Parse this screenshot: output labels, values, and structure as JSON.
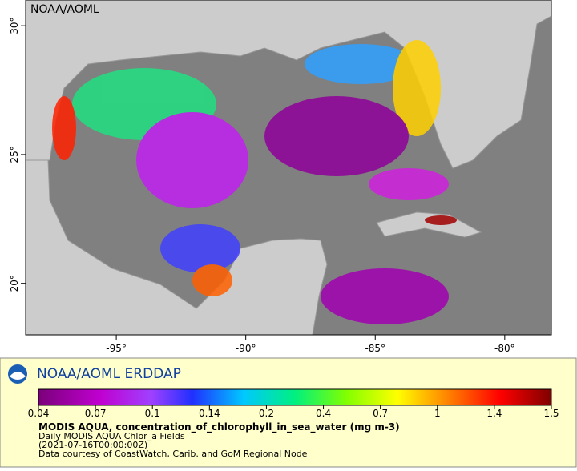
{
  "map": {
    "corner_label": "NOAA/AOML",
    "xlim": [
      -98.5,
      -78.2
    ],
    "ylim": [
      18,
      31
    ],
    "xticks": [
      {
        "value": -95,
        "label": "-95°"
      },
      {
        "value": -90,
        "label": "-90°"
      },
      {
        "value": -85,
        "label": "-85°"
      },
      {
        "value": -80,
        "label": "-80°"
      }
    ],
    "yticks": [
      {
        "value": 30,
        "label": "30°"
      },
      {
        "value": 25,
        "label": "25°"
      },
      {
        "value": 20,
        "label": "20°"
      }
    ]
  },
  "footer": {
    "brand": "NOAA/AOML ERDDAP",
    "colorbar_ticks": [
      "0.04",
      "0.07",
      "0.1",
      "0.14",
      "0.2",
      "0.4",
      "0.7",
      "1",
      "1.4",
      "1.5"
    ],
    "title": "MODIS AQUA, concentration_of_chlorophyll_in_sea_water (mg m-3)",
    "lines": [
      "Daily MODIS AQUA Chlor_a Fields",
      "(2021-07-16T00:00:00Z)",
      "Data courtesy of CoastWatch, Carib. and GoM Regional Node"
    ]
  }
}
